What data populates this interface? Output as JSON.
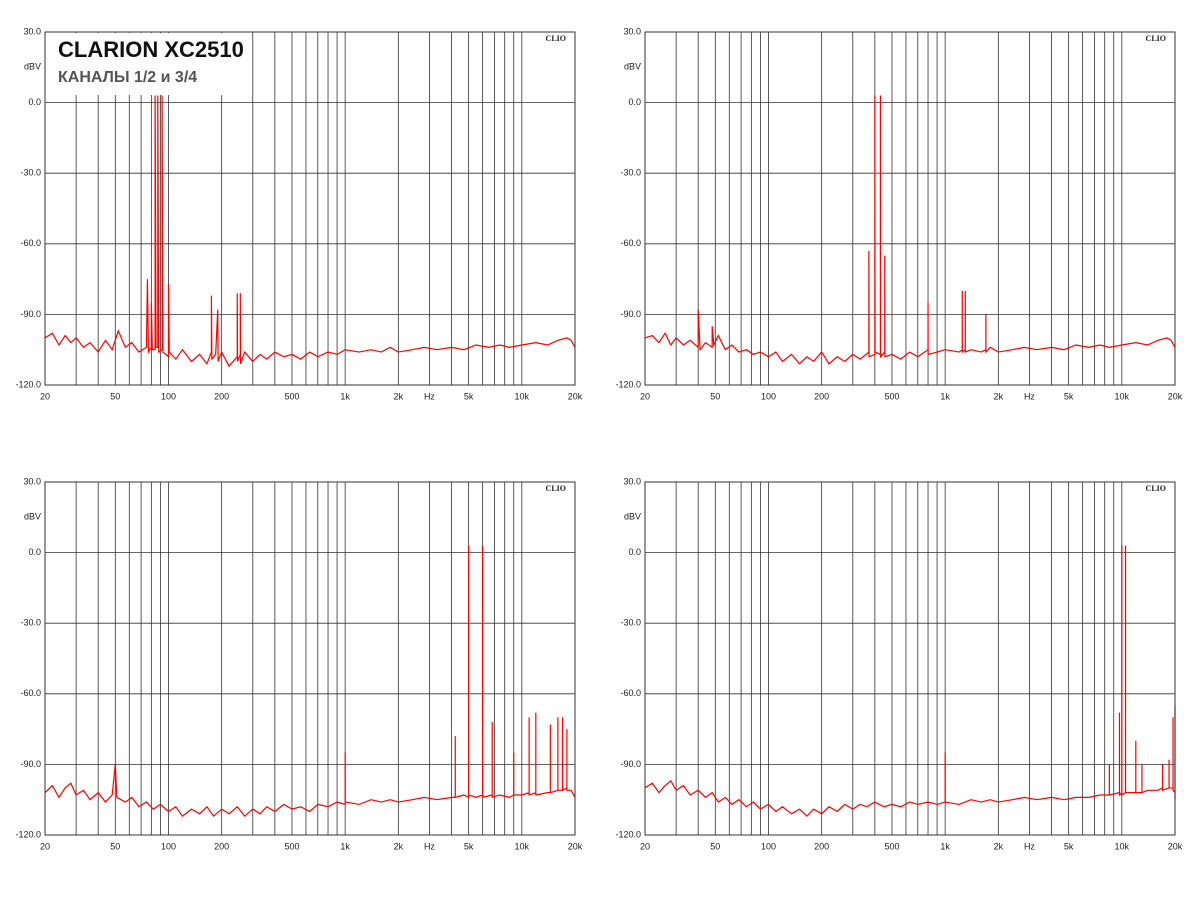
{
  "chart_data": [
    {
      "type": "line",
      "title": "CLARION XC2510",
      "subtitle": "КАНАЛЫ 1/2 и 3/4",
      "watermark": "CLIO",
      "ylabel": "dBV",
      "xlabel": "Hz",
      "xscale": "log",
      "grid": true,
      "color": "#ff0000",
      "xlim": [
        20,
        20000
      ],
      "ylim": [
        -120,
        30
      ],
      "xticks": [
        20,
        50,
        100,
        200,
        500,
        {
          "value": 1000,
          "label": "1k"
        },
        {
          "value": 2000,
          "label": "2k"
        },
        {
          "value": 5000,
          "label": "5k"
        },
        {
          "value": 10000,
          "label": "10k"
        },
        {
          "value": 20000,
          "label": "20k"
        }
      ],
      "xgrid": [
        20,
        30,
        40,
        50,
        60,
        70,
        80,
        90,
        100,
        200,
        300,
        400,
        500,
        600,
        700,
        800,
        900,
        1000,
        2000,
        3000,
        4000,
        5000,
        6000,
        7000,
        8000,
        9000,
        10000,
        20000
      ],
      "yticks": [
        {
          "value": 30,
          "label": "30.0"
        },
        {
          "value": 0,
          "label": "0.0"
        },
        {
          "value": -30,
          "label": "-30.0"
        },
        {
          "value": -60,
          "label": "-60.0"
        },
        {
          "value": -90,
          "label": "-90.0"
        },
        {
          "value": -120,
          "label": "-120.0"
        }
      ],
      "x": [
        20,
        22,
        24,
        26,
        28,
        30,
        33,
        36,
        40,
        44,
        48,
        52,
        57,
        62,
        68,
        75,
        76,
        77,
        80,
        80,
        81,
        84,
        84,
        85,
        87,
        87,
        88,
        92,
        92,
        93,
        100,
        100,
        101,
        110,
        120,
        135,
        150,
        165,
        175,
        175,
        176,
        185,
        190,
        191,
        200,
        220,
        245,
        245,
        246,
        255,
        255,
        256,
        270,
        300,
        330,
        360,
        400,
        450,
        500,
        560,
        630,
        700,
        800,
        900,
        1000,
        1200,
        1400,
        1600,
        1800,
        2000,
        2400,
        2800,
        3300,
        4000,
        4700,
        5500,
        6500,
        7500,
        8500,
        10000,
        12000,
        14000,
        16000,
        18000,
        19000,
        20000
      ],
      "values": [
        -100,
        -98,
        -103,
        -99,
        -102,
        -100,
        -104,
        -102,
        -106,
        -101,
        -105,
        -97,
        -104,
        -102,
        -106,
        -104,
        -75,
        -106,
        -104,
        -85,
        -105,
        -105,
        3,
        -104,
        -104,
        3,
        -106,
        -105,
        3,
        -106,
        -108,
        -77,
        -106,
        -109,
        -105,
        -110,
        -107,
        -111,
        -106,
        -82,
        -109,
        -107,
        -88,
        -110,
        -106,
        -112,
        -108,
        -81,
        -110,
        -107,
        -81,
        -111,
        -106,
        -110,
        -107,
        -109,
        -106,
        -108,
        -107,
        -109,
        -106,
        -108,
        -106,
        -107,
        -105,
        -106,
        -105,
        -106,
        -104,
        -106,
        -105,
        -104,
        -105,
        -104,
        -105,
        -103,
        -104,
        -103,
        -104,
        -103,
        -102,
        -103,
        -101,
        -100,
        -101,
        -104
      ]
    },
    {
      "type": "line",
      "watermark": "CLIO",
      "ylabel": "dBV",
      "xlabel": "Hz",
      "xscale": "log",
      "grid": true,
      "color": "#ff0000",
      "xlim": [
        20,
        20000
      ],
      "ylim": [
        -120,
        30
      ],
      "xticks": [
        20,
        50,
        100,
        200,
        500,
        {
          "value": 1000,
          "label": "1k"
        },
        {
          "value": 2000,
          "label": "2k"
        },
        {
          "value": 5000,
          "label": "5k"
        },
        {
          "value": 10000,
          "label": "10k"
        },
        {
          "value": 20000,
          "label": "20k"
        }
      ],
      "xgrid": [
        20,
        30,
        40,
        50,
        60,
        70,
        80,
        90,
        100,
        200,
        300,
        400,
        500,
        600,
        700,
        800,
        900,
        1000,
        2000,
        3000,
        4000,
        5000,
        6000,
        7000,
        8000,
        9000,
        10000,
        20000
      ],
      "yticks": [
        {
          "value": 30,
          "label": "30.0"
        },
        {
          "value": 0,
          "label": "0.0"
        },
        {
          "value": -30,
          "label": "-30.0"
        },
        {
          "value": -60,
          "label": "-60.0"
        },
        {
          "value": -90,
          "label": "-90.0"
        },
        {
          "value": -120,
          "label": "-120.0"
        }
      ],
      "x": [
        20,
        22,
        24,
        26,
        28,
        30,
        33,
        36,
        40,
        40,
        41,
        44,
        48,
        48,
        49,
        52,
        57,
        62,
        68,
        75,
        82,
        90,
        100,
        110,
        120,
        135,
        150,
        165,
        180,
        200,
        220,
        245,
        270,
        300,
        330,
        370,
        370,
        371,
        400,
        400,
        401,
        430,
        430,
        431,
        455,
        455,
        456,
        500,
        560,
        630,
        700,
        800,
        800,
        801,
        900,
        1000,
        1200,
        1250,
        1250,
        1251,
        1300,
        1300,
        1301,
        1400,
        1600,
        1700,
        1700,
        1701,
        1800,
        2000,
        2400,
        2800,
        3300,
        4000,
        4700,
        5500,
        6500,
        7500,
        8500,
        10000,
        12000,
        14000,
        16000,
        18000,
        19000,
        20000
      ],
      "values": [
        -100,
        -99,
        -102,
        -98,
        -103,
        -100,
        -103,
        -101,
        -104,
        -88,
        -105,
        -102,
        -104,
        -95,
        -103,
        -99,
        -105,
        -103,
        -106,
        -105,
        -107,
        -106,
        -108,
        -106,
        -110,
        -107,
        -111,
        -108,
        -110,
        -106,
        -111,
        -108,
        -110,
        -107,
        -109,
        -106,
        -63,
        -108,
        -107,
        3,
        -106,
        -107,
        3,
        -108,
        -106,
        -65,
        -108,
        -107,
        -109,
        -106,
        -108,
        -105,
        -85,
        -107,
        -106,
        -105,
        -106,
        -105,
        -80,
        -106,
        -105,
        -80,
        -106,
        -105,
        -106,
        -105,
        -90,
        -106,
        -104,
        -106,
        -105,
        -104,
        -105,
        -104,
        -105,
        -103,
        -104,
        -103,
        -104,
        -103,
        -102,
        -103,
        -101,
        -100,
        -101,
        -104
      ]
    },
    {
      "type": "line",
      "watermark": "CLIO",
      "ylabel": "dBV",
      "xlabel": "Hz",
      "xscale": "log",
      "grid": true,
      "color": "#ff0000",
      "xlim": [
        20,
        20000
      ],
      "ylim": [
        -120,
        30
      ],
      "xticks": [
        20,
        50,
        100,
        200,
        500,
        {
          "value": 1000,
          "label": "1k"
        },
        {
          "value": 2000,
          "label": "2k"
        },
        {
          "value": 5000,
          "label": "5k"
        },
        {
          "value": 10000,
          "label": "10k"
        },
        {
          "value": 20000,
          "label": "20k"
        }
      ],
      "xgrid": [
        20,
        30,
        40,
        50,
        60,
        70,
        80,
        90,
        100,
        200,
        300,
        400,
        500,
        600,
        700,
        800,
        900,
        1000,
        2000,
        3000,
        4000,
        5000,
        6000,
        7000,
        8000,
        9000,
        10000,
        20000
      ],
      "yticks": [
        {
          "value": 30,
          "label": "30.0"
        },
        {
          "value": 0,
          "label": "0.0"
        },
        {
          "value": -30,
          "label": "-30.0"
        },
        {
          "value": -60,
          "label": "-60.0"
        },
        {
          "value": -90,
          "label": "-90.0"
        },
        {
          "value": -120,
          "label": "-120.0"
        }
      ],
      "x": [
        20,
        22,
        24,
        26,
        28,
        30,
        33,
        36,
        40,
        44,
        48,
        50,
        51,
        57,
        62,
        68,
        75,
        82,
        90,
        100,
        110,
        120,
        135,
        150,
        165,
        180,
        200,
        220,
        245,
        270,
        300,
        330,
        360,
        400,
        450,
        500,
        560,
        630,
        700,
        800,
        900,
        1000,
        1000,
        1001,
        1200,
        1400,
        1600,
        1800,
        2000,
        2400,
        2800,
        3300,
        4000,
        4200,
        4200,
        4201,
        4700,
        5000,
        5000,
        5001,
        5500,
        6000,
        6000,
        6001,
        6800,
        6800,
        6801,
        7500,
        8500,
        9000,
        9000,
        9001,
        10000,
        11000,
        11000,
        11001,
        12000,
        12000,
        12001,
        14000,
        14500,
        14500,
        14501,
        16000,
        16000,
        16001,
        17000,
        17000,
        17001,
        18000,
        18000,
        18001,
        19000,
        20000
      ],
      "values": [
        -102,
        -99,
        -104,
        -100,
        -98,
        -103,
        -101,
        -105,
        -102,
        -106,
        -103,
        -90,
        -104,
        -106,
        -104,
        -108,
        -106,
        -109,
        -107,
        -110,
        -108,
        -112,
        -109,
        -111,
        -108,
        -112,
        -109,
        -111,
        -108,
        -112,
        -109,
        -111,
        -108,
        -110,
        -107,
        -109,
        -108,
        -110,
        -107,
        -108,
        -106,
        -107,
        -85,
        -106,
        -107,
        -105,
        -106,
        -105,
        -106,
        -105,
        -104,
        -105,
        -104,
        -104,
        -78,
        -104,
        -103,
        -104,
        3,
        -103,
        -104,
        -103,
        3,
        -104,
        -103,
        -72,
        -104,
        -103,
        -104,
        -103,
        -85,
        -103,
        -103,
        -102,
        -70,
        -103,
        -102,
        -68,
        -103,
        -102,
        -102,
        -73,
        -102,
        -101,
        -70,
        -101,
        -101,
        -70,
        -101,
        -100,
        -75,
        -101,
        -101,
        -104
      ]
    },
    {
      "type": "line",
      "watermark": "CLIO",
      "ylabel": "dBV",
      "xlabel": "Hz",
      "xscale": "log",
      "grid": true,
      "color": "#ff0000",
      "xlim": [
        20,
        20000
      ],
      "ylim": [
        -120,
        30
      ],
      "xticks": [
        20,
        50,
        100,
        200,
        500,
        {
          "value": 1000,
          "label": "1k"
        },
        {
          "value": 2000,
          "label": "2k"
        },
        {
          "value": 5000,
          "label": "5k"
        },
        {
          "value": 10000,
          "label": "10k"
        },
        {
          "value": 20000,
          "label": "20k"
        }
      ],
      "xgrid": [
        20,
        30,
        40,
        50,
        60,
        70,
        80,
        90,
        100,
        200,
        300,
        400,
        500,
        600,
        700,
        800,
        900,
        1000,
        2000,
        3000,
        4000,
        5000,
        6000,
        7000,
        8000,
        9000,
        10000,
        20000
      ],
      "yticks": [
        {
          "value": 30,
          "label": "30.0"
        },
        {
          "value": 0,
          "label": "0.0"
        },
        {
          "value": -30,
          "label": "-30.0"
        },
        {
          "value": -60,
          "label": "-60.0"
        },
        {
          "value": -90,
          "label": "-90.0"
        },
        {
          "value": -120,
          "label": "-120.0"
        }
      ],
      "x": [
        20,
        22,
        24,
        26,
        28,
        30,
        33,
        36,
        40,
        44,
        48,
        52,
        57,
        62,
        68,
        75,
        82,
        90,
        100,
        110,
        120,
        135,
        150,
        165,
        180,
        200,
        220,
        245,
        270,
        300,
        330,
        360,
        400,
        450,
        500,
        560,
        630,
        700,
        800,
        900,
        1000,
        1000,
        1001,
        1200,
        1400,
        1600,
        1800,
        2000,
        2400,
        2800,
        3300,
        4000,
        4700,
        5500,
        6500,
        7500,
        8500,
        8500,
        8501,
        9700,
        9700,
        9701,
        10000,
        10000,
        10001,
        10500,
        10500,
        10501,
        12000,
        12000,
        12001,
        13000,
        13000,
        13001,
        14000,
        16000,
        17000,
        17000,
        17001,
        18500,
        18500,
        18501,
        19500,
        19500,
        19501,
        20000,
        20000,
        20000
      ],
      "values": [
        -100,
        -98,
        -102,
        -99,
        -97,
        -101,
        -99,
        -103,
        -101,
        -104,
        -102,
        -106,
        -104,
        -107,
        -105,
        -108,
        -106,
        -109,
        -107,
        -110,
        -108,
        -111,
        -109,
        -112,
        -109,
        -111,
        -108,
        -110,
        -107,
        -109,
        -107,
        -108,
        -106,
        -108,
        -107,
        -108,
        -106,
        -107,
        -106,
        -107,
        -106,
        -85,
        -106,
        -107,
        -105,
        -106,
        -105,
        -106,
        -105,
        -104,
        -105,
        -104,
        -105,
        -104,
        -104,
        -103,
        -103,
        -90,
        -103,
        -102,
        -68,
        -103,
        -102,
        3,
        -103,
        -102,
        3,
        -102,
        -102,
        -80,
        -102,
        -102,
        -90,
        -102,
        -101,
        -101,
        -100,
        -90,
        -101,
        -100,
        -88,
        -100,
        -100,
        -70,
        -101,
        -102,
        -65,
        -105
      ]
    }
  ]
}
